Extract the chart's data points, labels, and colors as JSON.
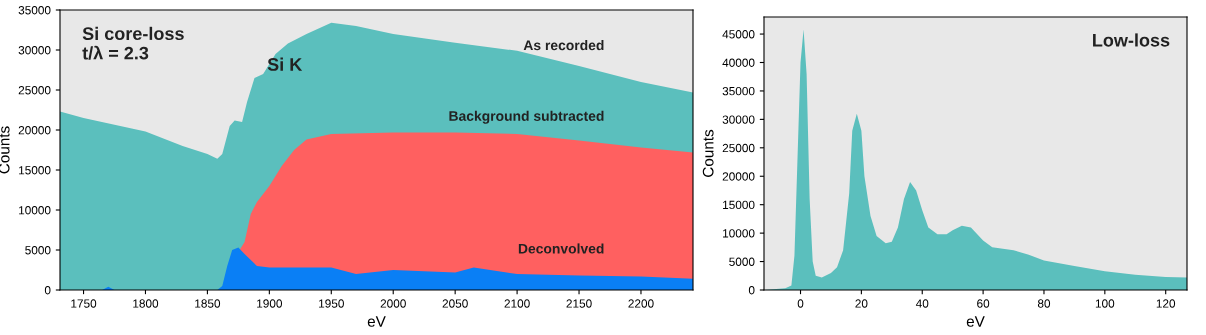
{
  "chart_data": [
    {
      "type": "area",
      "xlabel": "eV",
      "ylabel": "Counts",
      "xlim": [
        1731,
        2242
      ],
      "ylim": [
        0,
        35000
      ],
      "xticks": [
        1750,
        1800,
        1850,
        1900,
        1950,
        2000,
        2050,
        2100,
        2150,
        2200
      ],
      "yticks": [
        0,
        5000,
        10000,
        15000,
        20000,
        25000,
        30000,
        35000
      ],
      "grid": false,
      "annotations": [
        "Si core-loss\nt/λ = 2.3",
        "Si K"
      ],
      "series": [
        {
          "name": "As recorded",
          "color": "#5bbfbd",
          "x": [
            1731,
            1750,
            1800,
            1830,
            1850,
            1858,
            1862,
            1868,
            1872,
            1878,
            1882,
            1888,
            1895,
            1905,
            1915,
            1930,
            1950,
            1970,
            2000,
            2050,
            2100,
            2150,
            2200,
            2242
          ],
          "values": [
            22300,
            21500,
            19800,
            18000,
            17000,
            16400,
            17000,
            20500,
            21200,
            21000,
            23500,
            26500,
            27000,
            29500,
            30800,
            32000,
            33400,
            33000,
            32000,
            30900,
            29900,
            28000,
            26000,
            24700
          ]
        },
        {
          "name": "Background subtracted",
          "color": "#ff6060",
          "x": [
            1876,
            1880,
            1885,
            1890,
            1900,
            1910,
            1920,
            1930,
            1950,
            2000,
            2050,
            2100,
            2150,
            2200,
            2242
          ],
          "values": [
            5000,
            6000,
            9500,
            11000,
            13000,
            15500,
            17500,
            18800,
            19500,
            19700,
            19700,
            19500,
            18700,
            17800,
            17200
          ]
        },
        {
          "name": "Deconvolved",
          "color": "#0a7ff5",
          "x": [
            1731,
            1765,
            1770,
            1775,
            1858,
            1862,
            1866,
            1870,
            1875,
            1880,
            1890,
            1900,
            1950,
            1970,
            2000,
            2050,
            2065,
            2100,
            2150,
            2200,
            2242
          ],
          "values": [
            0,
            0,
            400,
            0,
            0,
            500,
            3000,
            5000,
            5300,
            4500,
            3000,
            2800,
            2800,
            2000,
            2500,
            2200,
            2800,
            2000,
            1800,
            1700,
            1400
          ]
        }
      ]
    },
    {
      "type": "area",
      "xlabel": "eV",
      "ylabel": "Counts",
      "xlim": [
        -12,
        127
      ],
      "ylim": [
        0,
        48000
      ],
      "xticks": [
        0,
        20,
        40,
        60,
        80,
        100,
        120
      ],
      "yticks": [
        0,
        5000,
        10000,
        15000,
        20000,
        25000,
        30000,
        35000,
        40000,
        45000
      ],
      "grid": false,
      "annotations": [
        "Low-loss"
      ],
      "series": [
        {
          "color": "#5bbfbd",
          "x": [
            -12,
            -5,
            -3,
            -2,
            -1,
            0,
            1,
            2,
            3,
            4,
            5,
            7,
            10,
            12,
            14,
            16,
            17,
            18.5,
            20,
            21,
            23,
            25,
            28,
            30,
            32,
            34,
            36,
            38,
            40,
            42,
            45,
            48,
            50,
            53,
            56,
            60,
            63,
            70,
            75,
            80,
            90,
            100,
            110,
            120,
            127
          ],
          "values": [
            0,
            300,
            800,
            6000,
            23000,
            40000,
            45800,
            38000,
            16000,
            5000,
            2500,
            2200,
            3000,
            4000,
            7000,
            17000,
            28000,
            31000,
            28000,
            20000,
            13000,
            9500,
            8200,
            8500,
            11000,
            16000,
            19000,
            17500,
            14000,
            11000,
            9800,
            9800,
            10500,
            11300,
            11000,
            8700,
            7500,
            7000,
            6200,
            5200,
            4200,
            3300,
            2700,
            2300,
            2200
          ]
        }
      ]
    }
  ]
}
